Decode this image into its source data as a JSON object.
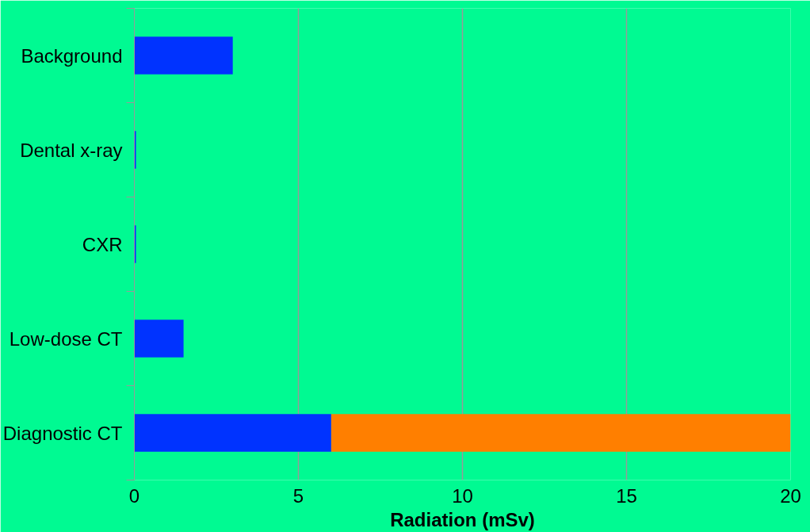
{
  "chart_data": {
    "type": "bar",
    "orientation": "horizontal",
    "stacked": true,
    "xlabel": "Radiation (mSv)",
    "categories": [
      "Background",
      "Dental x-ray",
      "CXR",
      "Low-dose CT",
      "Diagnostic CT"
    ],
    "series": [
      {
        "color": "#0033ff",
        "values": [
          3,
          0.05,
          0.05,
          1.5,
          6
        ]
      },
      {
        "color": "#ff7f00",
        "values": [
          null,
          null,
          null,
          null,
          14
        ]
      }
    ],
    "xlim": [
      0,
      20
    ],
    "xticks": [
      0,
      5,
      10,
      15,
      20
    ],
    "grid": "x"
  }
}
